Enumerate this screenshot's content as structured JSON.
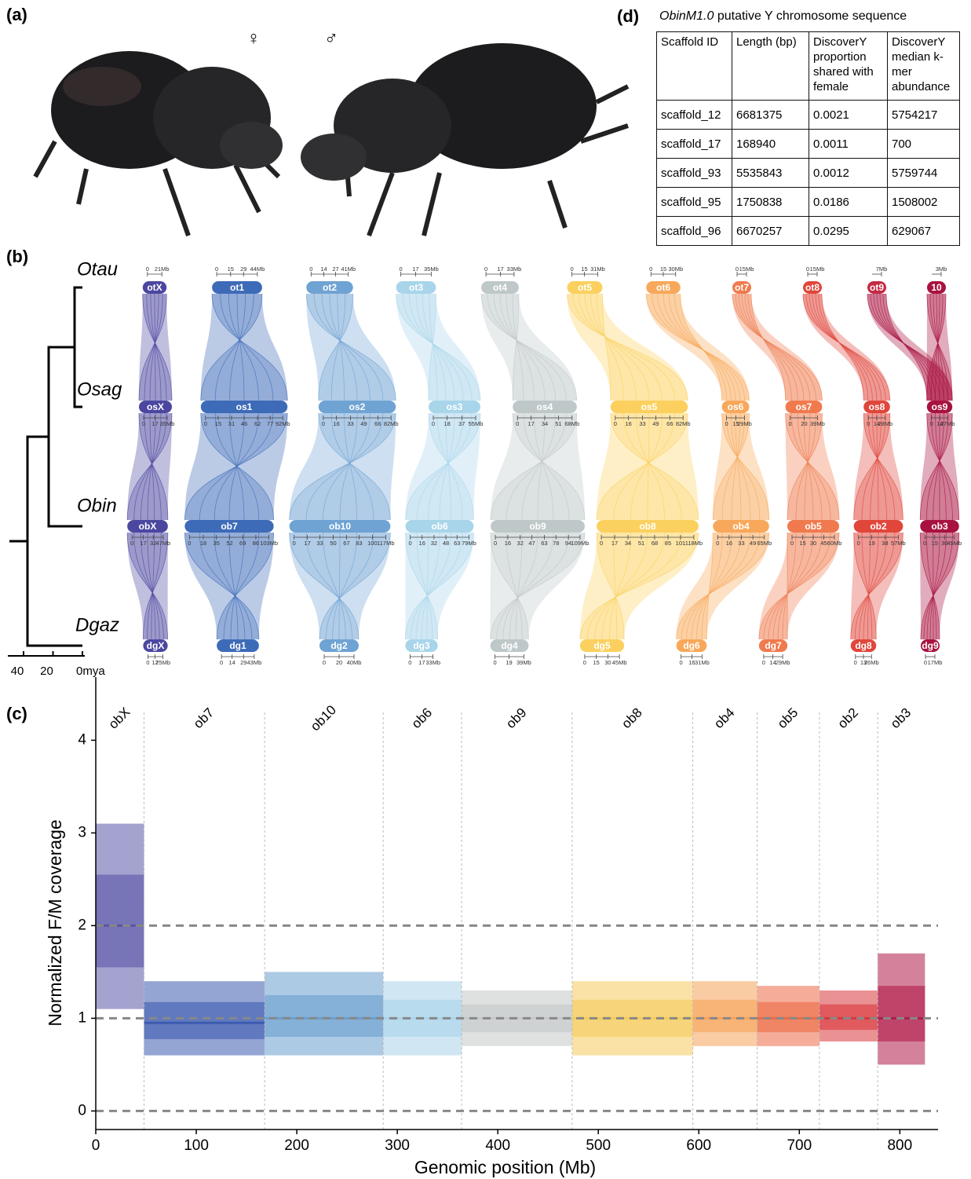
{
  "panel_labels": [
    "(a)",
    "(b)",
    "(c)",
    "(d)"
  ],
  "panel_a": {
    "female": "♀",
    "male": "♂"
  },
  "panel_b": {
    "time_axis": {
      "ticks": [
        40,
        20,
        {
          "value": 0,
          "label": "0mya"
        }
      ]
    },
    "species": [
      {
        "name": "Otau",
        "chromosomes": [
          {
            "label": "otX",
            "color": "#4b47a0",
            "ticks": [
              0,
              {
                "value": 21,
                "label": "21Mb"
              }
            ]
          },
          {
            "label": "ot1",
            "color": "#3d6bb8",
            "ticks": [
              0,
              15,
              29,
              {
                "value": 44,
                "label": "44Mb"
              }
            ]
          },
          {
            "label": "ot2",
            "color": "#6fa3d3",
            "ticks": [
              0,
              14,
              27,
              {
                "value": 41,
                "label": "41Mb"
              }
            ]
          },
          {
            "label": "ot3",
            "color": "#a8d5ea",
            "ticks": [
              0,
              17,
              {
                "value": 35,
                "label": "35Mb"
              }
            ]
          },
          {
            "label": "ot4",
            "color": "#bfc8c9",
            "ticks": [
              0,
              17,
              {
                "value": 33,
                "label": "33Mb"
              }
            ]
          },
          {
            "label": "ot5",
            "color": "#fbd05e",
            "ticks": [
              0,
              15,
              {
                "value": 31,
                "label": "31Mb"
              }
            ]
          },
          {
            "label": "ot6",
            "color": "#f8a85a",
            "ticks": [
              0,
              15,
              {
                "value": 30,
                "label": "30Mb"
              }
            ]
          },
          {
            "label": "ot7",
            "color": "#f07a4e",
            "ticks": [
              0,
              {
                "value": 15,
                "label": "15Mb"
              }
            ]
          },
          {
            "label": "ot8",
            "color": "#e0463a",
            "ticks": [
              0,
              {
                "value": 15,
                "label": "15Mb"
              }
            ]
          },
          {
            "label": "ot9",
            "color": "#c42a43",
            "ticks": [
              {
                "value": 7,
                "label": "7Mb"
              }
            ]
          },
          {
            "label": "10",
            "color": "#a8123f",
            "ticks": [
              {
                "value": 3,
                "label": "3Mb"
              }
            ]
          }
        ]
      },
      {
        "name": "Osag",
        "chromosomes": [
          {
            "label": "osX",
            "color": "#4b47a0",
            "ticks": [
              0,
              17,
              {
                "value": 35,
                "label": "35Mb"
              }
            ]
          },
          {
            "label": "os1",
            "color": "#3d6bb8",
            "ticks": [
              0,
              15,
              31,
              46,
              62,
              77,
              {
                "value": 92,
                "label": "92Mb"
              }
            ]
          },
          {
            "label": "os2",
            "color": "#6fa3d3",
            "ticks": [
              0,
              16,
              33,
              49,
              66,
              {
                "value": 82,
                "label": "82Mb"
              }
            ]
          },
          {
            "label": "os3",
            "color": "#a8d5ea",
            "ticks": [
              0,
              18,
              37,
              {
                "value": 55,
                "label": "55Mb"
              }
            ]
          },
          {
            "label": "os4",
            "color": "#bfc8c9",
            "ticks": [
              0,
              17,
              34,
              51,
              {
                "value": 68,
                "label": "68Mb"
              }
            ]
          },
          {
            "label": "os5",
            "color": "#fbd05e",
            "ticks": [
              0,
              16,
              33,
              49,
              66,
              {
                "value": 82,
                "label": "82Mb"
              }
            ]
          },
          {
            "label": "os6",
            "color": "#f8a85a",
            "ticks": [
              0,
              15,
              {
                "value": 29,
                "label": "29Mb"
              }
            ]
          },
          {
            "label": "os7",
            "color": "#f07a4e",
            "ticks": [
              0,
              20,
              {
                "value": 39,
                "label": "39Mb"
              }
            ]
          },
          {
            "label": "os8",
            "color": "#e0463a",
            "ticks": [
              0,
              14,
              {
                "value": 28,
                "label": "28Mb"
              }
            ]
          },
          {
            "label": "os9",
            "color": "#a8123f",
            "ticks": [
              0,
              14,
              {
                "value": 27,
                "label": "27Mb"
              }
            ]
          }
        ]
      },
      {
        "name": "Obin",
        "chromosomes": [
          {
            "label": "obX",
            "color": "#4b47a0",
            "ticks": [
              0,
              17,
              32,
              {
                "value": 47,
                "label": "47Mb"
              }
            ]
          },
          {
            "label": "ob7",
            "color": "#3d6bb8",
            "ticks": [
              0,
              18,
              35,
              52,
              69,
              86,
              {
                "value": 103,
                "label": "103Mb"
              }
            ]
          },
          {
            "label": "ob10",
            "color": "#6fa3d3",
            "ticks": [
              0,
              17,
              33,
              50,
              67,
              83,
              100,
              {
                "value": 117,
                "label": "117Mb"
              }
            ]
          },
          {
            "label": "ob6",
            "color": "#a8d5ea",
            "ticks": [
              0,
              16,
              32,
              48,
              63,
              {
                "value": 79,
                "label": "79Mb"
              }
            ]
          },
          {
            "label": "ob9",
            "color": "#bfc8c9",
            "ticks": [
              0,
              16,
              32,
              47,
              63,
              78,
              94,
              {
                "value": 109,
                "label": "109Mb"
              }
            ]
          },
          {
            "label": "ob8",
            "color": "#fbd05e",
            "ticks": [
              0,
              17,
              34,
              51,
              68,
              85,
              101,
              {
                "value": 118,
                "label": "118Mb"
              }
            ]
          },
          {
            "label": "ob4",
            "color": "#f8a85a",
            "ticks": [
              0,
              16,
              33,
              49,
              {
                "value": 65,
                "label": "65Mb"
              }
            ]
          },
          {
            "label": "ob5",
            "color": "#f07a4e",
            "ticks": [
              0,
              15,
              30,
              45,
              {
                "value": 60,
                "label": "60Mb"
              }
            ]
          },
          {
            "label": "ob2",
            "color": "#e0463a",
            "ticks": [
              0,
              19,
              38,
              {
                "value": 57,
                "label": "57Mb"
              }
            ]
          },
          {
            "label": "ob3",
            "color": "#a8123f",
            "ticks": [
              0,
              15,
              30,
              {
                "value": 45,
                "label": "45Mb"
              }
            ]
          }
        ]
      },
      {
        "name": "Dgaz",
        "chromosomes": [
          {
            "label": "dgX",
            "color": "#4b47a0",
            "ticks": [
              0,
              12,
              {
                "value": 25,
                "label": "25Mb"
              }
            ]
          },
          {
            "label": "dg1",
            "color": "#3d6bb8",
            "ticks": [
              0,
              14,
              29,
              {
                "value": 43,
                "label": "43Mb"
              }
            ]
          },
          {
            "label": "dg2",
            "color": "#6fa3d3",
            "ticks": [
              0,
              20,
              {
                "value": 40,
                "label": "40Mb"
              }
            ]
          },
          {
            "label": "dg3",
            "color": "#a8d5ea",
            "ticks": [
              0,
              17,
              {
                "value": 33,
                "label": "33Mb"
              }
            ]
          },
          {
            "label": "dg4",
            "color": "#bfc8c9",
            "ticks": [
              0,
              19,
              {
                "value": 39,
                "label": "39Mb"
              }
            ]
          },
          {
            "label": "dg5",
            "color": "#fbd05e",
            "ticks": [
              0,
              15,
              30,
              {
                "value": 45,
                "label": "45Mb"
              }
            ]
          },
          {
            "label": "dg6",
            "color": "#f8a85a",
            "ticks": [
              0,
              16,
              {
                "value": 31,
                "label": "31Mb"
              }
            ]
          },
          {
            "label": "dg7",
            "color": "#f07a4e",
            "ticks": [
              0,
              14,
              {
                "value": 29,
                "label": "29Mb"
              }
            ]
          },
          {
            "label": "dg8",
            "color": "#e0463a",
            "ticks": [
              0,
              13,
              {
                "value": 26,
                "label": "26Mb"
              }
            ]
          },
          {
            "label": "dg9",
            "color": "#a8123f",
            "ticks": [
              0,
              {
                "value": 17,
                "label": "17Mb"
              }
            ]
          }
        ]
      }
    ]
  },
  "chart_data": {
    "type": "scatter",
    "x_label": "Genomic position (Mb)",
    "y_label": "Normalized F/M coverage",
    "xlim": [
      0,
      838
    ],
    "ylim": [
      -0.2,
      4.3
    ],
    "xticks": [
      0,
      100,
      200,
      300,
      400,
      500,
      600,
      700,
      800
    ],
    "yticks": [
      0,
      1,
      2,
      3,
      4
    ],
    "hlines": [
      0,
      1,
      2
    ],
    "series": [
      {
        "name": "obX",
        "color": "#5a55a8",
        "start": 0,
        "end": 48,
        "low": 1.1,
        "median": 2.0,
        "high": 3.1
      },
      {
        "name": "ob7",
        "color": "#3d5bb0",
        "start": 48,
        "end": 168,
        "low": 0.6,
        "median": 0.95,
        "high": 1.4
      },
      {
        "name": "ob10",
        "color": "#6a9fcf",
        "start": 168,
        "end": 286,
        "low": 0.6,
        "median": 1.0,
        "high": 1.5
      },
      {
        "name": "ob6",
        "color": "#a9d4ea",
        "start": 286,
        "end": 364,
        "low": 0.6,
        "median": 1.0,
        "high": 1.4
      },
      {
        "name": "ob9",
        "color": "#c4c8c9",
        "start": 364,
        "end": 474,
        "low": 0.7,
        "median": 1.0,
        "high": 1.3
      },
      {
        "name": "ob8",
        "color": "#f5cb5c",
        "start": 474,
        "end": 594,
        "low": 0.6,
        "median": 1.0,
        "high": 1.4
      },
      {
        "name": "ob4",
        "color": "#f6a35a",
        "start": 594,
        "end": 658,
        "low": 0.7,
        "median": 1.0,
        "high": 1.4
      },
      {
        "name": "ob5",
        "color": "#ec6a45",
        "start": 658,
        "end": 720,
        "low": 0.7,
        "median": 1.0,
        "high": 1.35
      },
      {
        "name": "ob2",
        "color": "#d9363a",
        "start": 720,
        "end": 778,
        "low": 0.75,
        "median": 1.0,
        "high": 1.3
      },
      {
        "name": "ob3",
        "color": "#b01b4a",
        "start": 778,
        "end": 825,
        "low": 0.5,
        "median": 1.0,
        "high": 1.7
      }
    ]
  },
  "table": {
    "title_italic": "ObinM1.0",
    "title": "putative Y chromosome sequence",
    "header": [
      "Scaffold ID",
      "Length (bp)",
      "DiscoverY proportion shared with female",
      "DiscoverY median k-mer abundance"
    ],
    "rows": [
      [
        "scaffold_12",
        6681375,
        0.0021,
        5754217
      ],
      [
        "scaffold_17",
        168940,
        0.0011,
        700
      ],
      [
        "scaffold_93",
        5535843,
        0.0012,
        5759744
      ],
      [
        "scaffold_95",
        1750838,
        0.0186,
        1508002
      ],
      [
        "scaffold_96",
        6670257,
        0.0295,
        629067
      ]
    ]
  }
}
